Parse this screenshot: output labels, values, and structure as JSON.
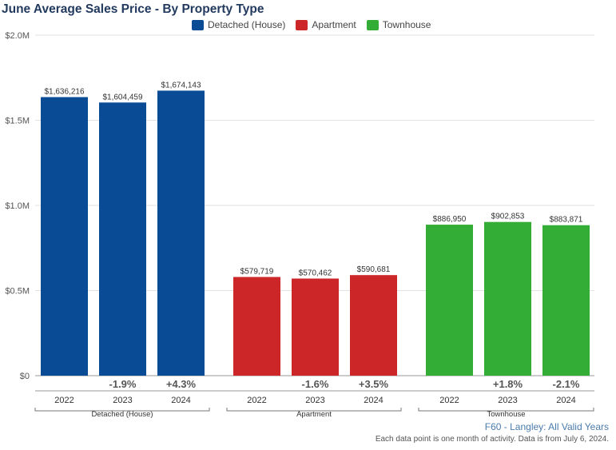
{
  "chart_data": {
    "type": "bar",
    "title": "June Average Sales Price - By Property Type",
    "ylim": [
      0,
      2000000
    ],
    "yticks": [
      0,
      500000,
      1000000,
      1500000,
      2000000
    ],
    "ytick_labels": [
      "$0",
      "$0.5M",
      "$1.0M",
      "$1.5M",
      "$2.0M"
    ],
    "grid": true,
    "legend_position": "top-center",
    "groups": [
      {
        "name": "Detached (House)",
        "color": "#0a4b95",
        "years": [
          "2022",
          "2023",
          "2024"
        ],
        "values": [
          1636216,
          1604459,
          1674143
        ],
        "value_labels": [
          "$1,636,216",
          "$1,604,459",
          "$1,674,143"
        ],
        "changes": [
          "",
          "-1.9%",
          "+4.3%"
        ]
      },
      {
        "name": "Apartment",
        "color": "#cc2629",
        "years": [
          "2022",
          "2023",
          "2024"
        ],
        "values": [
          579719,
          570462,
          590681
        ],
        "value_labels": [
          "$579,719",
          "$570,462",
          "$590,681"
        ],
        "changes": [
          "",
          "-1.6%",
          "+3.5%"
        ]
      },
      {
        "name": "Townhouse",
        "color": "#34ad36",
        "years": [
          "2022",
          "2023",
          "2024"
        ],
        "values": [
          886950,
          902853,
          883871
        ],
        "value_labels": [
          "$886,950",
          "$902,853",
          "$883,871"
        ],
        "changes": [
          "",
          "+1.8%",
          "-2.1%"
        ]
      }
    ]
  },
  "legend": [
    {
      "label": "Detached (House)",
      "color": "#0a4b95"
    },
    {
      "label": "Apartment",
      "color": "#cc2629"
    },
    {
      "label": "Townhouse",
      "color": "#34ad36"
    }
  ],
  "footer": {
    "source": "F60 - Langley: All Valid Years",
    "note": "Each data point is one month of activity. Data is from July 6, 2024."
  }
}
